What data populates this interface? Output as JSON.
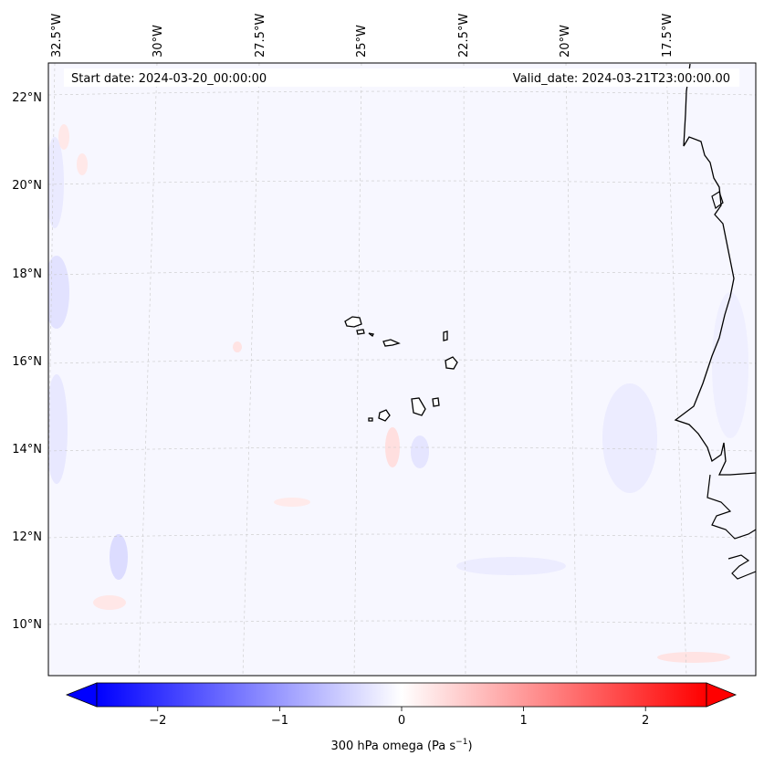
{
  "map": {
    "start_date_text": "Start date: 2024-03-20_00:00:00",
    "valid_date_text": "Valid_date: 2024-03-21T23:00:00.00",
    "lon_labels": [
      "32.5°W",
      "30°W",
      "27.5°W",
      "25°W",
      "22.5°W",
      "20°W",
      "17.5°W"
    ],
    "lat_labels": [
      "22°N",
      "20°N",
      "18°N",
      "16°N",
      "14°N",
      "12°N",
      "10°N"
    ],
    "colors": {
      "negative": "#0000ff",
      "zero": "#ffffff",
      "positive": "#ff0000",
      "coastline": "#000000",
      "gridline": "#c8c8c8"
    }
  },
  "colorbar": {
    "ticks": [
      "−2",
      "−1",
      "0",
      "1",
      "2"
    ],
    "tick_values": [
      -2,
      -1,
      0,
      1,
      2
    ],
    "range": [
      -2.5,
      2.5
    ],
    "label_prefix": "300 hPa omega (Pa s",
    "label_exponent": "−1",
    "label_suffix": ")"
  }
}
